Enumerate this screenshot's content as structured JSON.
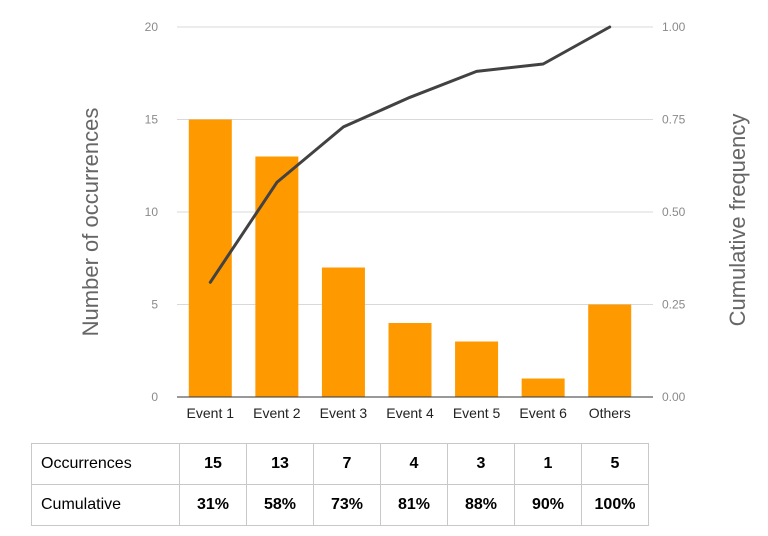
{
  "chart_data": {
    "type": "bar",
    "categories": [
      "Event 1",
      "Event 2",
      "Event 3",
      "Event 4",
      "Event 5",
      "Event 6",
      "Others"
    ],
    "series": [
      {
        "values": [
          15,
          13,
          7,
          4,
          3,
          1,
          5
        ]
      },
      {
        "values": [
          0.31,
          0.58,
          0.73,
          0.81,
          0.88,
          0.9,
          1.0
        ],
        "type": "line",
        "axis": "right"
      }
    ],
    "ylabel": "Number of occurrences",
    "y2label": "Cumulative frequency",
    "ylim": [
      0,
      20
    ],
    "y2lim": [
      0,
      1
    ],
    "yticks": [
      "0",
      "5",
      "10",
      "15",
      "20"
    ],
    "y2ticks": [
      "0.00",
      "0.25",
      "0.50",
      "0.75",
      "1.00"
    ],
    "grid": true,
    "colors": {
      "bar": "#ff9900",
      "line": "#424242",
      "grid": "#d9d9d9",
      "axis": "#333333"
    }
  },
  "table": {
    "rows": [
      {
        "label": "Occurrences",
        "values": [
          "15",
          "13",
          "7",
          "4",
          "3",
          "1",
          "5"
        ]
      },
      {
        "label": "Cumulative",
        "values": [
          "31%",
          "58%",
          "73%",
          "81%",
          "88%",
          "90%",
          "100%"
        ]
      }
    ]
  }
}
